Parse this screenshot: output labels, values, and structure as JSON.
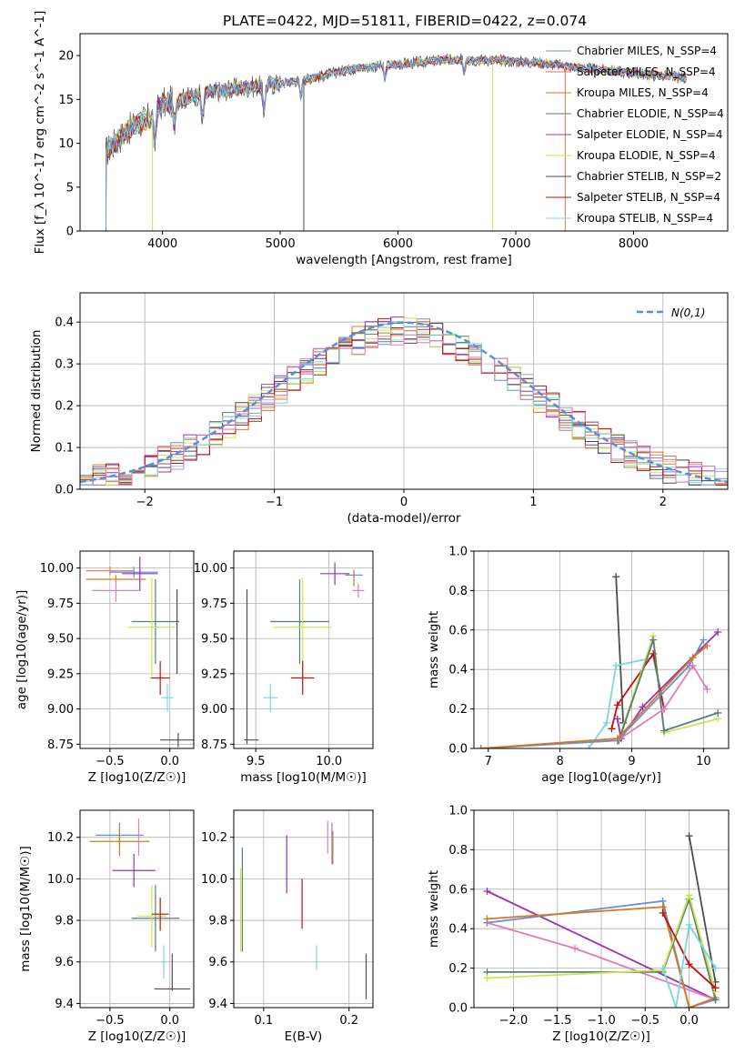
{
  "title": "PLATE=0422, MJD=51811, FIBERID=0422, z=0.074",
  "colors": {
    "chabrier_miles": "#6c8fd6",
    "salpeter_miles": "#e8734a",
    "kroupa_miles": "#d17a1e",
    "chabrier_elodie": "#5a7d7a",
    "salpeter_elodie": "#9932b5",
    "kroupa_elodie": "#c9e64f",
    "chabrier_stelib": "#4d4d4d",
    "salpeter_stelib": "#bf1010",
    "kroupa_stelib": "#7ad6dc",
    "gauss": "#5a8fd6",
    "pink": "#e27cb3",
    "grid": "#b0b0b0"
  },
  "chart_data": [
    {
      "id": "spectrum",
      "type": "line",
      "xlabel": "wavelength [Angstrom, rest frame]",
      "ylabel": "Flux [f_λ 10^-17 erg cm^-2 s^-1 A^-1]",
      "xlim": [
        3300,
        8800
      ],
      "ylim": [
        0,
        22.5
      ],
      "xticks": [
        4000,
        5000,
        6000,
        7000,
        8000
      ],
      "yticks": [
        0,
        5,
        10,
        15,
        20
      ],
      "legend_position": "right",
      "legend": [
        "Chabrier MILES, N_SSP=4",
        "Salpeter MILES, N_SSP=4",
        "Kroupa MILES, N_SSP=4",
        "Chabrier ELODIE, N_SSP=4",
        "Salpeter ELODIE, N_SSP=4",
        "Kroupa ELODIE, N_SSP=4",
        "Chabrier STELIB, N_SSP=2",
        "Salpeter STELIB, N_SSP=4",
        "Kroupa STELIB, N_SSP=4"
      ],
      "continuum": [
        [
          3520,
          9.0
        ],
        [
          3700,
          11.5
        ],
        [
          3900,
          13.0
        ],
        [
          4000,
          14.5
        ],
        [
          4300,
          15.5
        ],
        [
          4600,
          16.2
        ],
        [
          5000,
          16.8
        ],
        [
          5300,
          17.5
        ],
        [
          5600,
          18.5
        ],
        [
          6000,
          19.0
        ],
        [
          6400,
          19.5
        ],
        [
          6800,
          19.5
        ],
        [
          7200,
          19.2
        ],
        [
          7600,
          18.5
        ],
        [
          8000,
          18.0
        ],
        [
          8400,
          17.5
        ]
      ],
      "absorption_features": [
        [
          3933,
          4.0
        ],
        [
          4101,
          3.0
        ],
        [
          4340,
          3.5
        ],
        [
          4861,
          3.0
        ],
        [
          5175,
          2.0
        ],
        [
          5890,
          1.5
        ],
        [
          6563,
          1.5
        ]
      ]
    },
    {
      "id": "residual_hist",
      "type": "histogram",
      "xlabel": "(data-model)/error",
      "ylabel": "Normed distribution",
      "xlim": [
        -2.5,
        2.5
      ],
      "ylim": [
        0,
        0.47
      ],
      "xticks": [
        -2,
        -1,
        0,
        1,
        2
      ],
      "yticks": [
        0.0,
        0.1,
        0.2,
        0.3,
        0.4
      ],
      "legend": [
        "N(0,1)"
      ],
      "legend_position": "top-right",
      "gaussian": {
        "mean": 0,
        "sigma": 1
      }
    },
    {
      "id": "age_vs_Z",
      "type": "scatter",
      "xlabel": "Z [log10(Z/Z☉)]",
      "ylabel": "age  [log10(age/yr)]",
      "xlim": [
        -0.75,
        0.2
      ],
      "ylim": [
        8.72,
        10.12
      ],
      "xticks": [
        -0.5,
        0.0
      ],
      "yticks": [
        8.75,
        9.0,
        9.25,
        9.5,
        9.75,
        10.0
      ],
      "points": [
        {
          "x": -0.3,
          "y": 9.97,
          "xerr": 0.2,
          "yerr": 0.04,
          "color": "chabrier_miles"
        },
        {
          "x": -0.45,
          "y": 9.92,
          "xerr": 0.25,
          "yerr": 0.03,
          "color": "kroupa_miles"
        },
        {
          "x": -0.5,
          "y": 9.98,
          "xerr": 0.2,
          "yerr": 0.03,
          "color": "salpeter_miles"
        },
        {
          "x": -0.45,
          "y": 9.84,
          "xerr": 0.2,
          "yerr": 0.08,
          "color": "pink"
        },
        {
          "x": -0.25,
          "y": 9.96,
          "xerr": 0.15,
          "yerr": 0.12,
          "color": "salpeter_elodie"
        },
        {
          "x": -0.12,
          "y": 9.62,
          "xerr": 0.2,
          "yerr": 0.3,
          "color": "chabrier_elodie"
        },
        {
          "x": -0.15,
          "y": 9.58,
          "xerr": 0.2,
          "yerr": 0.35,
          "color": "kroupa_elodie"
        },
        {
          "x": -0.08,
          "y": 9.22,
          "xerr": 0.08,
          "yerr": 0.12,
          "color": "salpeter_stelib"
        },
        {
          "x": -0.02,
          "y": 9.08,
          "xerr": 0.05,
          "yerr": 0.1,
          "color": "kroupa_stelib"
        },
        {
          "x": 0.07,
          "y": 8.78,
          "xerr": 0.15,
          "yerr": 0.05,
          "color": "chabrier_stelib"
        },
        {
          "x": 0.06,
          "y": 9.55,
          "xerr": 0.0,
          "yerr": 0.3,
          "color": "chabrier_stelib"
        }
      ]
    },
    {
      "id": "age_vs_mass",
      "type": "scatter",
      "xlabel": "mass [log10(M/M☉)]",
      "ylabel": "",
      "xlim": [
        9.35,
        10.3
      ],
      "ylim": [
        8.72,
        10.12
      ],
      "xticks": [
        9.5,
        10.0
      ],
      "yticks": [
        8.75,
        9.0,
        9.25,
        9.5,
        9.75,
        10.0
      ],
      "points": [
        {
          "x": 10.17,
          "y": 9.95,
          "xerr": 0.06,
          "yerr": 0.04,
          "color": "chabrier_miles"
        },
        {
          "x": 10.17,
          "y": 9.92,
          "xerr": 0.0,
          "yerr": 0.05,
          "color": "kroupa_miles"
        },
        {
          "x": 10.2,
          "y": 9.84,
          "xerr": 0.04,
          "yerr": 0.05,
          "color": "pink"
        },
        {
          "x": 10.04,
          "y": 9.96,
          "xerr": 0.1,
          "yerr": 0.08,
          "color": "salpeter_elodie"
        },
        {
          "x": 9.8,
          "y": 9.62,
          "xerr": 0.2,
          "yerr": 0.3,
          "color": "chabrier_elodie"
        },
        {
          "x": 9.82,
          "y": 9.58,
          "xerr": 0.2,
          "yerr": 0.35,
          "color": "kroupa_elodie"
        },
        {
          "x": 9.82,
          "y": 9.22,
          "xerr": 0.08,
          "yerr": 0.12,
          "color": "salpeter_stelib"
        },
        {
          "x": 9.6,
          "y": 9.08,
          "xerr": 0.05,
          "yerr": 0.1,
          "color": "kroupa_stelib"
        },
        {
          "x": 9.47,
          "y": 8.78,
          "xerr": 0.05,
          "yerr": 0.0,
          "color": "chabrier_stelib"
        },
        {
          "x": 9.44,
          "y": 9.3,
          "xerr": 0.0,
          "yerr": 0.55,
          "color": "chabrier_stelib"
        }
      ]
    },
    {
      "id": "weight_vs_age",
      "type": "line",
      "xlabel": "age  [log10(age/yr)]",
      "ylabel": "mass weight",
      "xlim": [
        6.8,
        10.35
      ],
      "ylim": [
        0,
        1.0
      ],
      "xticks": [
        7,
        8,
        9,
        10
      ],
      "yticks": [
        0.0,
        0.2,
        0.4,
        0.6,
        0.8,
        1.0
      ],
      "series": [
        {
          "color": "chabrier_stelib",
          "x": [
            8.78,
            8.88
          ],
          "y": [
            0.87,
            0.13
          ]
        },
        {
          "color": "kroupa_stelib",
          "x": [
            8.4,
            8.65,
            8.78,
            9.3,
            9.45
          ],
          "y": [
            0.0,
            0.13,
            0.42,
            0.46,
            0.2
          ]
        },
        {
          "color": "salpeter_stelib",
          "x": [
            8.72,
            8.8,
            9.3,
            9.45
          ],
          "y": [
            0.1,
            0.22,
            0.48,
            0.2
          ]
        },
        {
          "color": "kroupa_elodie",
          "x": [
            8.82,
            9.3,
            9.45,
            10.2
          ],
          "y": [
            0.05,
            0.57,
            0.08,
            0.15
          ]
        },
        {
          "color": "chabrier_elodie",
          "x": [
            8.82,
            9.3,
            9.45,
            10.2
          ],
          "y": [
            0.04,
            0.55,
            0.09,
            0.18
          ]
        },
        {
          "color": "salpeter_elodie",
          "x": [
            8.8,
            8.85,
            9.15,
            10.2
          ],
          "y": [
            0.15,
            0.05,
            0.21,
            0.59
          ]
        },
        {
          "color": "pink",
          "x": [
            6.9,
            8.8,
            9.45,
            9.85,
            10.05
          ],
          "y": [
            0.0,
            0.04,
            0.2,
            0.42,
            0.3
          ]
        },
        {
          "color": "chabrier_miles",
          "x": [
            6.9,
            8.8,
            9.8,
            10.0
          ],
          "y": [
            0.0,
            0.04,
            0.42,
            0.55
          ]
        },
        {
          "color": "kroupa_miles",
          "x": [
            6.9,
            8.8,
            9.85,
            10.05
          ],
          "y": [
            0.0,
            0.05,
            0.46,
            0.52
          ]
        }
      ]
    },
    {
      "id": "mass_vs_Z",
      "type": "scatter",
      "xlabel": "Z [log10(Z/Z☉)]",
      "ylabel": "mass [log10(M/M☉)]",
      "xlim": [
        -0.75,
        0.2
      ],
      "ylim": [
        9.38,
        10.33
      ],
      "xticks": [
        -0.5,
        0.0
      ],
      "yticks": [
        9.4,
        9.6,
        9.8,
        10.0,
        10.2
      ],
      "points": [
        {
          "x": -0.42,
          "y": 10.21,
          "xerr": 0.2,
          "yerr": 0.06,
          "color": "chabrier_miles"
        },
        {
          "x": -0.42,
          "y": 10.18,
          "xerr": 0.25,
          "yerr": 0.07,
          "color": "kroupa_miles"
        },
        {
          "x": -0.26,
          "y": 10.2,
          "xerr": 0.0,
          "yerr": 0.09,
          "color": "pink"
        },
        {
          "x": -0.3,
          "y": 10.04,
          "xerr": 0.18,
          "yerr": 0.08,
          "color": "salpeter_elodie"
        },
        {
          "x": -0.12,
          "y": 9.81,
          "xerr": 0.2,
          "yerr": 0.16,
          "color": "chabrier_elodie"
        },
        {
          "x": -0.15,
          "y": 9.82,
          "xerr": 0.12,
          "yerr": 0.15,
          "color": "kroupa_elodie"
        },
        {
          "x": -0.08,
          "y": 9.83,
          "xerr": 0.07,
          "yerr": 0.08,
          "color": "salpeter_stelib"
        },
        {
          "x": -0.05,
          "y": 9.6,
          "xerr": 0.02,
          "yerr": 0.08,
          "color": "kroupa_stelib"
        },
        {
          "x": 0.02,
          "y": 9.47,
          "xerr": 0.15,
          "yerr": 0.0,
          "color": "chabrier_stelib"
        },
        {
          "x": 0.02,
          "y": 9.55,
          "xerr": 0.0,
          "yerr": 0.09,
          "color": "chabrier_stelib"
        }
      ]
    },
    {
      "id": "mass_vs_ebv",
      "type": "scatter",
      "xlabel": "E(B-V)",
      "ylabel": "",
      "xlim": [
        0.065,
        0.228
      ],
      "ylim": [
        9.38,
        10.33
      ],
      "xticks": [
        0.1,
        0.2
      ],
      "yticks": [
        9.4,
        9.6,
        9.8,
        10.0,
        10.2
      ],
      "points": [
        {
          "x": 0.175,
          "y": 10.2,
          "xerr": 0,
          "yerr": 0.08,
          "color": "pink"
        },
        {
          "x": 0.18,
          "y": 10.17,
          "xerr": 0,
          "yerr": 0.1,
          "color": "chabrier_miles"
        },
        {
          "x": 0.181,
          "y": 10.15,
          "xerr": 0,
          "yerr": 0.08,
          "color": "kroupa_miles"
        },
        {
          "x": 0.127,
          "y": 10.07,
          "xerr": 0,
          "yerr": 0.14,
          "color": "salpeter_elodie"
        },
        {
          "x": 0.145,
          "y": 9.88,
          "xerr": 0,
          "yerr": 0.12,
          "color": "salpeter_stelib"
        },
        {
          "x": 0.073,
          "y": 9.85,
          "xerr": 0,
          "yerr": 0.2,
          "color": "kroupa_elodie"
        },
        {
          "x": 0.075,
          "y": 9.9,
          "xerr": 0,
          "yerr": 0.25,
          "color": "chabrier_elodie"
        },
        {
          "x": 0.162,
          "y": 9.62,
          "xerr": 0,
          "yerr": 0.06,
          "color": "kroupa_stelib"
        },
        {
          "x": 0.22,
          "y": 9.53,
          "xerr": 0,
          "yerr": 0.11,
          "color": "chabrier_stelib"
        }
      ]
    },
    {
      "id": "weight_vs_Z",
      "type": "line",
      "xlabel": "Z [log10(Z/Z☉)]",
      "ylabel": "mass weight",
      "xlim": [
        -2.45,
        0.45
      ],
      "ylim": [
        0,
        1.0
      ],
      "xticks": [
        -2.0,
        -1.5,
        -1.0,
        -0.5,
        0.0
      ],
      "yticks": [
        0.0,
        0.2,
        0.4,
        0.6,
        0.8,
        1.0
      ],
      "series": [
        {
          "color": "chabrier_stelib",
          "x": [
            0.0,
            0.3
          ],
          "y": [
            0.87,
            0.13
          ]
        },
        {
          "color": "salpeter_elodie",
          "x": [
            -2.3,
            0.3
          ],
          "y": [
            0.59,
            0.04
          ]
        },
        {
          "color": "pink",
          "x": [
            -2.3,
            -1.3,
            0.3
          ],
          "y": [
            0.43,
            0.3,
            0.04
          ]
        },
        {
          "color": "chabrier_miles",
          "x": [
            -2.3,
            -0.3,
            0.0,
            0.3
          ],
          "y": [
            0.43,
            0.54,
            0.0,
            0.04
          ]
        },
        {
          "color": "kroupa_miles",
          "x": [
            -2.3,
            -0.3,
            0.0,
            0.3
          ],
          "y": [
            0.45,
            0.51,
            0.0,
            0.05
          ]
        },
        {
          "color": "chabrier_elodie",
          "x": [
            -2.3,
            -0.3,
            0.0,
            0.3
          ],
          "y": [
            0.18,
            0.18,
            0.55,
            0.04
          ]
        },
        {
          "color": "kroupa_elodie",
          "x": [
            -2.3,
            -0.3,
            0.0,
            0.3
          ],
          "y": [
            0.15,
            0.19,
            0.57,
            0.08
          ]
        },
        {
          "color": "salpeter_stelib",
          "x": [
            -0.3,
            0.0,
            0.3
          ],
          "y": [
            0.48,
            0.22,
            0.1
          ]
        },
        {
          "color": "kroupa_stelib",
          "x": [
            -0.3,
            -0.15,
            0.0,
            0.3
          ],
          "y": [
            0.2,
            0.0,
            0.42,
            0.2
          ]
        }
      ]
    }
  ]
}
